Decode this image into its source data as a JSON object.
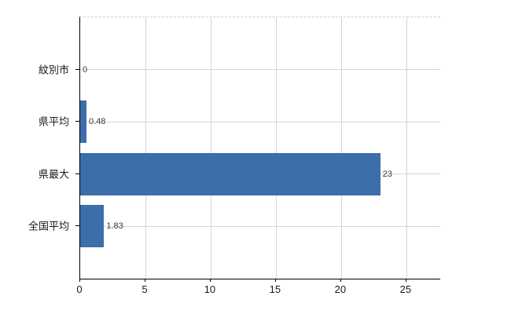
{
  "chart_data": {
    "type": "bar",
    "orientation": "horizontal",
    "title": "",
    "xlabel": "",
    "ylabel": "",
    "categories": [
      "紋別市",
      "県平均",
      "県最大",
      "全国平均"
    ],
    "values": [
      0,
      0.48,
      23,
      1.83
    ],
    "value_labels": [
      "0",
      "0.48",
      "23",
      "1.83"
    ],
    "xticks": [
      0,
      5,
      10,
      15,
      20,
      25
    ],
    "xtick_labels": [
      "0",
      "5",
      "10",
      "15",
      "20",
      "25"
    ],
    "xlim": [
      0,
      27.6
    ],
    "grid": true,
    "legend": false,
    "colors": {
      "bar": "#3d6ea9",
      "gridline": "#d3d9d3",
      "axis": "#000000",
      "label_text": "#1a1a1a",
      "value_text": "#3a3a3a",
      "background": "#ffffff"
    }
  }
}
